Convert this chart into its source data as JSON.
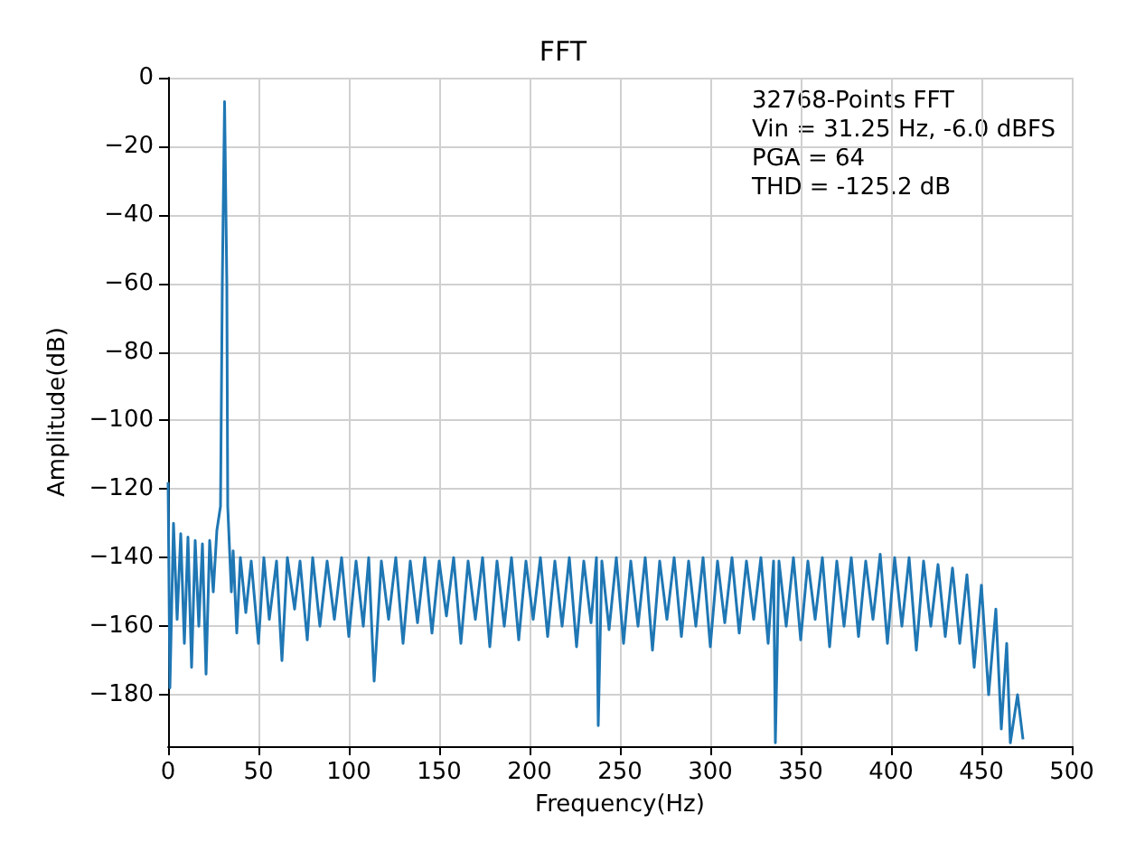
{
  "chart_data": {
    "type": "line",
    "title": "FFT",
    "xlabel": "Frequency(Hz)",
    "ylabel": "Amplitude(dB)",
    "annotations": [
      "32768-Points FFT",
      "Vin = 31.25 Hz, -6.0 dBFS",
      "PGA = 64",
      "THD = -125.2 dB"
    ],
    "xlim": [
      0,
      500
    ],
    "xticks": [
      0,
      50,
      100,
      150,
      200,
      250,
      300,
      350,
      400,
      450,
      500
    ],
    "ylim": [
      -195,
      0
    ],
    "yticks": [
      -180,
      -160,
      -140,
      -120,
      -100,
      -80,
      -60,
      -40,
      -20,
      0
    ],
    "grid": true,
    "marker": "none",
    "line_style": "solid",
    "series": [
      {
        "color": "#1f77b4",
        "x": [
          0,
          1,
          3,
          5,
          7,
          9,
          11,
          13,
          15,
          17,
          19,
          21,
          23,
          25,
          27,
          29,
          30,
          31.25,
          32.5,
          33,
          35,
          36,
          38,
          40,
          43,
          46,
          50,
          53,
          56,
          60,
          63,
          66,
          70,
          73,
          77,
          80,
          84,
          88,
          92,
          96,
          100,
          104,
          108,
          111,
          114,
          118,
          122,
          126,
          130,
          134,
          138,
          142,
          146,
          150,
          154,
          158,
          162,
          166,
          170,
          174,
          178,
          182,
          186,
          190,
          194,
          198,
          202,
          206,
          210,
          214,
          218,
          222,
          226,
          230,
          234,
          237,
          238,
          240,
          244,
          248,
          252,
          256,
          260,
          264,
          268,
          272,
          276,
          280,
          284,
          288,
          292,
          296,
          300,
          304,
          308,
          312,
          316,
          320,
          324,
          328,
          332,
          335,
          336,
          338,
          342,
          346,
          350,
          354,
          358,
          362,
          366,
          370,
          374,
          378,
          382,
          386,
          390,
          394,
          398,
          402,
          406,
          410,
          414,
          418,
          422,
          426,
          430,
          434,
          438,
          442,
          446,
          450,
          454,
          458,
          461,
          464,
          466,
          470,
          473
        ],
        "values": [
          -118,
          -178,
          -130,
          -158,
          -133,
          -165,
          -134,
          -172,
          -135,
          -160,
          -136,
          -174,
          -135,
          -150,
          -132,
          -125,
          -60,
          -7,
          -60,
          -125,
          -150,
          -138,
          -162,
          -140,
          -156,
          -141,
          -165,
          -140,
          -158,
          -141,
          -170,
          -140,
          -155,
          -141,
          -164,
          -140,
          -160,
          -141,
          -158,
          -140,
          -163,
          -141,
          -160,
          -140,
          -176,
          -141,
          -158,
          -140,
          -165,
          -141,
          -159,
          -140,
          -162,
          -141,
          -157,
          -140,
          -165,
          -141,
          -158,
          -140,
          -166,
          -141,
          -160,
          -140,
          -164,
          -141,
          -158,
          -140,
          -163,
          -141,
          -160,
          -140,
          -166,
          -141,
          -159,
          -140,
          -189,
          -141,
          -161,
          -140,
          -165,
          -141,
          -160,
          -140,
          -167,
          -141,
          -158,
          -140,
          -163,
          -141,
          -160,
          -140,
          -166,
          -141,
          -159,
          -140,
          -162,
          -141,
          -158,
          -140,
          -165,
          -141,
          -194,
          -141,
          -160,
          -140,
          -164,
          -141,
          -158,
          -140,
          -166,
          -141,
          -160,
          -140,
          -163,
          -141,
          -158,
          -139,
          -165,
          -140,
          -160,
          -140,
          -167,
          -141,
          -160,
          -142,
          -163,
          -143,
          -165,
          -145,
          -172,
          -148,
          -180,
          -155,
          -190,
          -165,
          -194,
          -180,
          -193
        ]
      }
    ]
  }
}
